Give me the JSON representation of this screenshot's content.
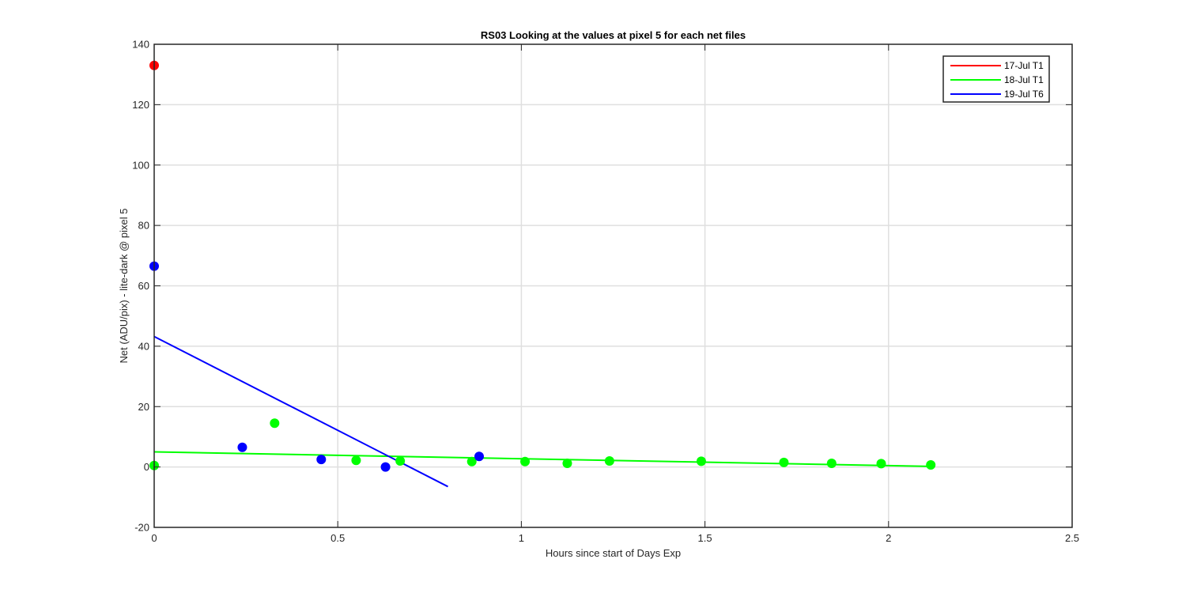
{
  "chart_data": {
    "type": "scatter",
    "title": "RS03  Looking at the values at pixel 5 for each net files",
    "xlabel": "Hours since start of Days Exp",
    "ylabel": "Net (ADU/pix) - lite-dark @ pixel 5",
    "xlim": [
      0,
      2.5
    ],
    "ylim": [
      -20,
      140
    ],
    "xticks": [
      0,
      0.5,
      1,
      1.5,
      2,
      2.5
    ],
    "xtick_labels": [
      "0",
      "0.5",
      "1",
      "1.5",
      "2",
      "2.5"
    ],
    "yticks": [
      -20,
      0,
      20,
      40,
      60,
      80,
      100,
      120,
      140
    ],
    "ytick_labels": [
      "-20",
      "0",
      "20",
      "40",
      "60",
      "80",
      "100",
      "120",
      "140"
    ],
    "grid": true,
    "legend_position": "top-right",
    "series": [
      {
        "name": "17-Jul T1",
        "color": "#ff0000",
        "points": [
          [
            0.0,
            133.0
          ]
        ],
        "fit_line": []
      },
      {
        "name": "18-Jul T1",
        "color": "#00ff00",
        "points": [
          [
            0.0,
            0.5
          ],
          [
            0.328,
            14.5
          ],
          [
            0.55,
            2.2
          ],
          [
            0.67,
            2.0
          ],
          [
            0.865,
            1.8
          ],
          [
            1.01,
            1.8
          ],
          [
            1.125,
            1.2
          ],
          [
            1.24,
            2.0
          ],
          [
            1.49,
            1.9
          ],
          [
            1.715,
            1.5
          ],
          [
            1.845,
            1.2
          ],
          [
            1.98,
            1.1
          ],
          [
            2.115,
            0.7
          ]
        ],
        "fit_line": [
          [
            0.0,
            5.0
          ],
          [
            2.115,
            0.2
          ]
        ]
      },
      {
        "name": "19-Jul T6",
        "color": "#0000ff",
        "points": [
          [
            0.0,
            66.5
          ],
          [
            0.24,
            6.5
          ],
          [
            0.455,
            2.5
          ],
          [
            0.63,
            0.0
          ],
          [
            0.885,
            3.5
          ]
        ],
        "fit_line": [
          [
            0.0,
            43.2
          ],
          [
            0.8,
            -6.5
          ]
        ]
      }
    ]
  }
}
